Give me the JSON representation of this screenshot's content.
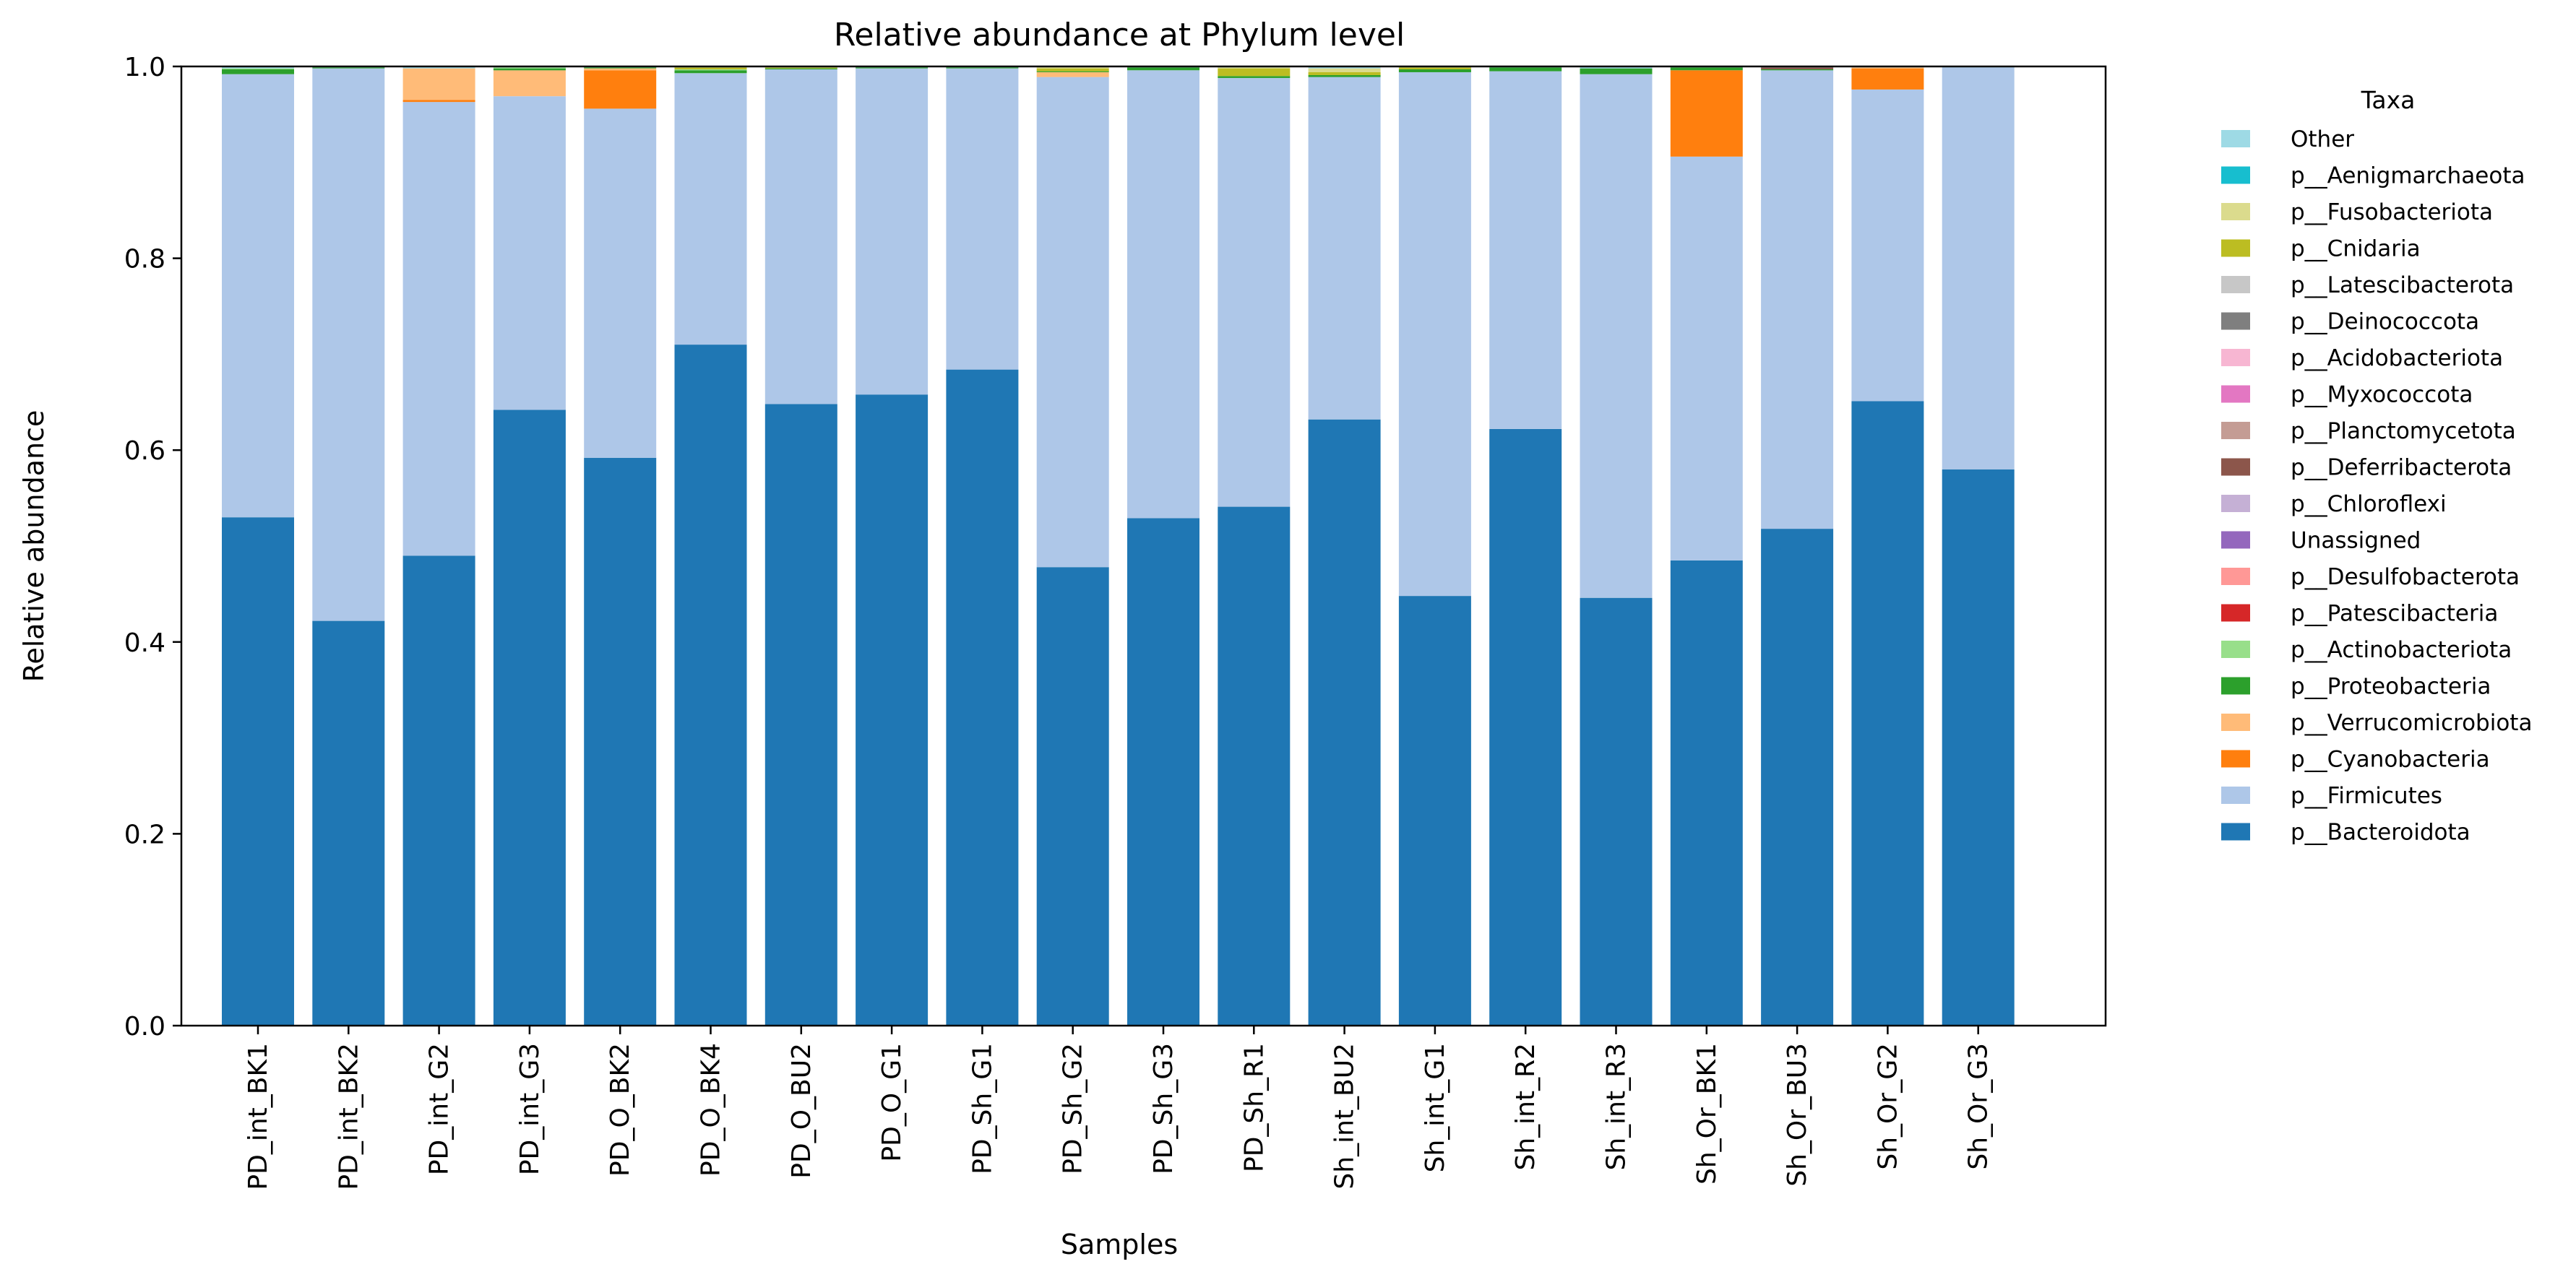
{
  "chart_data": {
    "type": "bar",
    "stacked": true,
    "title": "Relative abundance at Phylum level",
    "xlabel": "Samples",
    "ylabel": "Relative abundance",
    "ylim": [
      0,
      1.0
    ],
    "yticks": [
      "0.0",
      "0.2",
      "0.4",
      "0.6",
      "0.8",
      "1.0"
    ],
    "grid": false,
    "legend_title": "Taxa",
    "legend_position": "right, outside plot",
    "categories": [
      "PD_int_BK1",
      "PD_int_BK2",
      "PD_int_G2",
      "PD_int_G3",
      "PD_O_BK2",
      "PD_O_BK4",
      "PD_O_BU2",
      "PD_O_G1",
      "PD_Sh_G1",
      "PD_Sh_G2",
      "PD_Sh_G3",
      "PD_Sh_R1",
      "Sh_int_BU2",
      "Sh_int_G1",
      "Sh_int_R2",
      "Sh_int_R3",
      "Sh_Or_BK1",
      "Sh_Or_BU3",
      "Sh_Or_G2",
      "Sh_Or_G3"
    ],
    "series": [
      {
        "name": "p__Bacteroidota",
        "color": "#1f77b4",
        "values": [
          0.53,
          0.422,
          0.49,
          0.642,
          0.592,
          0.71,
          0.648,
          0.658,
          0.684,
          0.478,
          0.529,
          0.541,
          0.632,
          0.448,
          0.622,
          0.446,
          0.485,
          0.518,
          0.651,
          0.58
        ]
      },
      {
        "name": "p__Firmicutes",
        "color": "#aec7e8",
        "values": [
          0.462,
          0.576,
          0.473,
          0.327,
          0.364,
          0.283,
          0.349,
          0.34,
          0.314,
          0.511,
          0.467,
          0.447,
          0.357,
          0.546,
          0.373,
          0.546,
          0.421,
          0.478,
          0.325,
          0.419
        ]
      },
      {
        "name": "p__Cyanobacteria",
        "color": "#ff7f0e",
        "values": [
          0,
          0,
          0.002,
          0,
          0.04,
          0,
          0,
          0,
          0,
          0,
          0,
          0,
          0,
          0,
          0,
          0,
          0.09,
          0,
          0.022,
          0
        ]
      },
      {
        "name": "p__Verrucomicrobiota",
        "color": "#ffbb78",
        "values": [
          0,
          0,
          0.033,
          0.027,
          0.002,
          0,
          0,
          0,
          0,
          0.005,
          0,
          0,
          0,
          0,
          0,
          0,
          0,
          0,
          0.001,
          0
        ]
      },
      {
        "name": "p__Proteobacteria",
        "color": "#2ca02c",
        "values": [
          0.005,
          0.001,
          0,
          0.002,
          0.001,
          0.003,
          0.001,
          0.001,
          0.001,
          0.001,
          0.003,
          0.002,
          0.002,
          0.003,
          0.004,
          0.006,
          0.003,
          0.001,
          0,
          0
        ]
      },
      {
        "name": "p__Actinobacteriota",
        "color": "#98df8a",
        "values": [
          0.001,
          0,
          0,
          0.001,
          0,
          0.001,
          0,
          0,
          0,
          0,
          0,
          0,
          0,
          0,
          0,
          0,
          0,
          0,
          0,
          0
        ]
      },
      {
        "name": "p__Patescibacteria",
        "color": "#d62728",
        "values": [
          0,
          0,
          0,
          0,
          0,
          0,
          0,
          0,
          0,
          0,
          0,
          0,
          0,
          0,
          0,
          0,
          0,
          0,
          0,
          0
        ]
      },
      {
        "name": "p__Desulfobacterota",
        "color": "#ff9896",
        "values": [
          0,
          0,
          0,
          0,
          0,
          0,
          0,
          0,
          0,
          0,
          0,
          0,
          0,
          0,
          0,
          0,
          0,
          0,
          0,
          0
        ]
      },
      {
        "name": "Unassigned",
        "color": "#9467bd",
        "values": [
          0,
          0,
          0,
          0,
          0,
          0,
          0,
          0,
          0,
          0,
          0,
          0,
          0,
          0,
          0,
          0,
          0,
          0,
          0,
          0
        ]
      },
      {
        "name": "p__Chloroflexi",
        "color": "#c5b0d5",
        "values": [
          0,
          0,
          0,
          0,
          0,
          0,
          0,
          0,
          0,
          0,
          0,
          0,
          0,
          0,
          0,
          0,
          0,
          0,
          0,
          0
        ]
      },
      {
        "name": "p__Deferribacterota",
        "color": "#8c564b",
        "values": [
          0,
          0,
          0,
          0,
          0,
          0,
          0,
          0,
          0,
          0,
          0,
          0,
          0,
          0,
          0,
          0,
          0,
          0.002,
          0,
          0
        ]
      },
      {
        "name": "p__Planctomycetota",
        "color": "#c49c94",
        "values": [
          0,
          0,
          0,
          0,
          0,
          0,
          0,
          0,
          0,
          0,
          0,
          0,
          0,
          0,
          0,
          0,
          0,
          0,
          0,
          0
        ]
      },
      {
        "name": "p__Myxococcota",
        "color": "#e377c2",
        "values": [
          0,
          0,
          0,
          0,
          0,
          0,
          0,
          0,
          0,
          0,
          0,
          0,
          0,
          0,
          0,
          0,
          0,
          0,
          0,
          0
        ]
      },
      {
        "name": "p__Acidobacteriota",
        "color": "#f7b6d2",
        "values": [
          0,
          0,
          0,
          0,
          0,
          0,
          0,
          0,
          0,
          0,
          0,
          0,
          0,
          0,
          0,
          0,
          0,
          0,
          0,
          0
        ]
      },
      {
        "name": "p__Deinococcota",
        "color": "#7f7f7f",
        "values": [
          0,
          0,
          0,
          0,
          0,
          0,
          0,
          0,
          0,
          0,
          0,
          0,
          0,
          0,
          0,
          0,
          0,
          0,
          0,
          0
        ]
      },
      {
        "name": "p__Latescibacterota",
        "color": "#c7c7c7",
        "values": [
          0,
          0,
          0,
          0,
          0,
          0,
          0,
          0,
          0,
          0,
          0,
          0,
          0,
          0,
          0,
          0,
          0,
          0,
          0,
          0
        ]
      },
      {
        "name": "p__Cnidaria",
        "color": "#bcbd22",
        "values": [
          0,
          0,
          0,
          0,
          0,
          0.002,
          0.001,
          0,
          0,
          0.003,
          0,
          0.008,
          0.003,
          0.002,
          0,
          0,
          0,
          0,
          0,
          0
        ]
      },
      {
        "name": "p__Fusobacteriota",
        "color": "#dbdb8d",
        "values": [
          0,
          0,
          0,
          0,
          0,
          0,
          0,
          0,
          0,
          0.002,
          0,
          0.001,
          0.004,
          0,
          0,
          0,
          0,
          0,
          0,
          0
        ]
      },
      {
        "name": "p__Aenigmarchaeota",
        "color": "#17becf",
        "values": [
          0,
          0,
          0,
          0,
          0,
          0,
          0,
          0,
          0,
          0,
          0,
          0,
          0,
          0,
          0,
          0,
          0,
          0,
          0,
          0
        ]
      },
      {
        "name": "Other",
        "color": "#9edae5",
        "values": [
          0.002,
          0.001,
          0.002,
          0.001,
          0.001,
          0.001,
          0.001,
          0.001,
          0.001,
          0,
          0.001,
          0.001,
          0.002,
          0.001,
          0.001,
          0.002,
          0.001,
          0.001,
          0.001,
          0.001
        ]
      }
    ]
  }
}
